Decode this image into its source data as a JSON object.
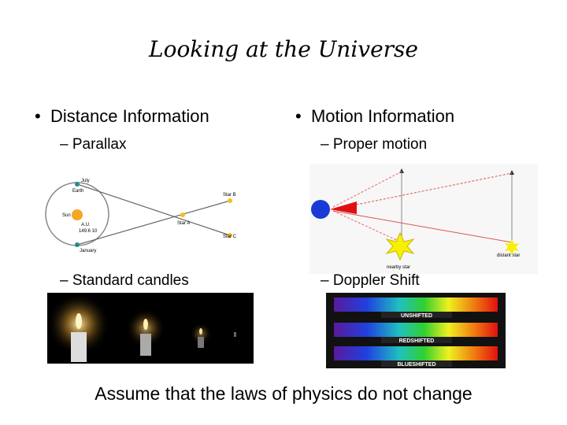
{
  "slide": {
    "title": "Looking at the Universe",
    "left": {
      "bullet": "Distance Information",
      "sub": [
        "Parallax",
        "Standard candles"
      ],
      "parallax_labels": {
        "july": "July",
        "earth": "Earth",
        "sun": "Sun",
        "au": "A.U.",
        "au_value": "149.6 10",
        "january": "January",
        "star_a": "Star A",
        "star_b": "Star B",
        "star_c": "Star C"
      }
    },
    "right": {
      "bullet": "Motion Information",
      "sub": [
        "Proper motion",
        "Doppler Shift"
      ],
      "motion_labels": {
        "nearby": "nearby star",
        "distant": "distant star"
      },
      "spectra": [
        "Unshifted",
        "Redshifted",
        "Blueshifted"
      ]
    },
    "footer": "Assume that the laws of physics do not change"
  }
}
